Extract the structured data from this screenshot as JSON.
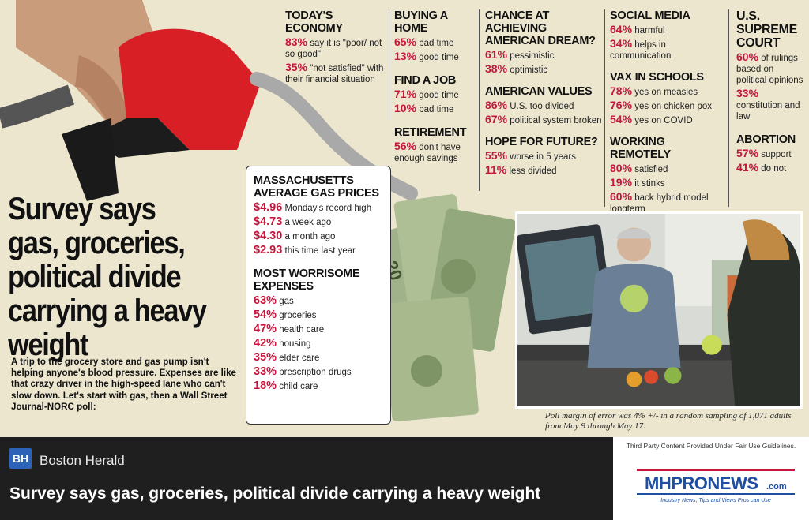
{
  "headline": "Survey says gas, groceries, political divide carrying a heavy weight",
  "intro": "A trip to the grocery store and gas pump isn't helping anyone's blood pressure. Expenses are like that crazy driver in the high-speed lane who can't slow down. Let's start with gas, then a Wall Street Journal-NORC poll:",
  "sections": {
    "economy": {
      "title": "TODAY'S ECONOMY",
      "stats": [
        {
          "pct": "83%",
          "text": "say it is \"poor/ not so good\""
        },
        {
          "pct": "35%",
          "text": "\"not satisfied\" with their financial situation"
        }
      ]
    },
    "home": {
      "title": "BUYING A HOME",
      "stats": [
        {
          "pct": "65%",
          "text": "bad time"
        },
        {
          "pct": "13%",
          "text": "good time"
        }
      ]
    },
    "job": {
      "title": "FIND A JOB",
      "stats": [
        {
          "pct": "71%",
          "text": "good time"
        },
        {
          "pct": "10%",
          "text": "bad time"
        }
      ]
    },
    "retirement": {
      "title": "RETIREMENT",
      "stats": [
        {
          "pct": "56%",
          "text": "don't have enough savings"
        }
      ]
    },
    "dream": {
      "title": "CHANCE AT ACHIEVING AMERICAN DREAM?",
      "stats": [
        {
          "pct": "61%",
          "text": "pessimistic"
        },
        {
          "pct": "38%",
          "text": "optimistic"
        }
      ]
    },
    "values": {
      "title": "AMERICAN VALUES",
      "stats": [
        {
          "pct": "86%",
          "text": "U.S. too divided"
        },
        {
          "pct": "67%",
          "text": "political system broken"
        }
      ]
    },
    "future": {
      "title": "HOPE FOR FUTURE?",
      "stats": [
        {
          "pct": "55%",
          "text": "worse in 5 years"
        },
        {
          "pct": "11%",
          "text": "less divided"
        }
      ]
    },
    "social": {
      "title": "SOCIAL MEDIA",
      "stats": [
        {
          "pct": "64%",
          "text": "harmful"
        },
        {
          "pct": "34%",
          "text": "helps in communication"
        }
      ]
    },
    "vax": {
      "title": "VAX IN SCHOOLS",
      "stats": [
        {
          "pct": "78%",
          "text": "yes on measles"
        },
        {
          "pct": "76%",
          "text": "yes on chicken pox"
        },
        {
          "pct": "54%",
          "text": "yes on COVID"
        }
      ]
    },
    "remote": {
      "title": "WORKING REMOTELY",
      "stats": [
        {
          "pct": "80%",
          "text": "satisfied"
        },
        {
          "pct": "19%",
          "text": "it stinks"
        },
        {
          "pct": "60%",
          "text": "back hybrid model longterm"
        }
      ]
    },
    "court": {
      "title": "U.S. SUPREME COURT",
      "stats": [
        {
          "pct": "60%",
          "text": "of rulings based on political opinions"
        },
        {
          "pct": "33%",
          "text": "constitution and law"
        }
      ]
    },
    "abortion": {
      "title": "ABORTION",
      "stats": [
        {
          "pct": "57%",
          "text": "support"
        },
        {
          "pct": "41%",
          "text": "do not"
        }
      ]
    }
  },
  "gas": {
    "title": "MASSACHUSETTS AVERAGE GAS PRICES",
    "prices": [
      {
        "price": "$4.96",
        "text": "Monday's record high"
      },
      {
        "price": "$4.73",
        "text": "a week ago"
      },
      {
        "price": "$4.30",
        "text": "a month ago"
      },
      {
        "price": "$2.93",
        "text": "this time last year"
      }
    ],
    "expenses_title": "MOST WORRISOME EXPENSES",
    "expenses": [
      {
        "pct": "63%",
        "text": "gas"
      },
      {
        "pct": "54%",
        "text": "groceries"
      },
      {
        "pct": "47%",
        "text": "health care"
      },
      {
        "pct": "42%",
        "text": "housing"
      },
      {
        "pct": "35%",
        "text": "elder care"
      },
      {
        "pct": "33%",
        "text": "prescription drugs"
      },
      {
        "pct": "18%",
        "text": "child care"
      }
    ]
  },
  "poll_note": "Poll margin of error was 4% +/- in a random sampling of 1,071 adults from May 9 through May 17.",
  "footer": {
    "logo": "BH",
    "publisher": "Boston Herald",
    "title": "Survey says gas, groceries, political divide carrying a heavy weight",
    "fair_use": "Third Party Content Provided Under Fair Use Guidelines.",
    "mhp_logo": "MHPRONEWS",
    "mhp_dotcom": ".com",
    "mhp_tagline": "Industry News, Tips and Views Pros can Use"
  },
  "colors": {
    "accent": "#c4173d",
    "background": "#ece6cf",
    "footer": "#1f1f1f",
    "mhp_blue": "#1f4fa0"
  }
}
